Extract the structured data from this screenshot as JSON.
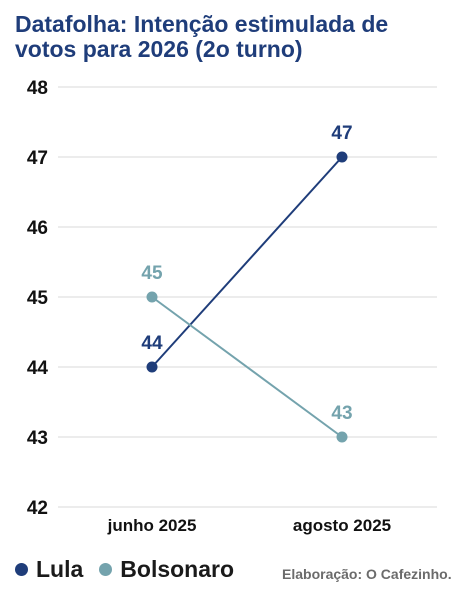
{
  "title": "Datafolha: Intenção estimulada de votos para 2026 (2o turno)",
  "credit": "Elaboração: O Cafezinho.",
  "colors": {
    "Lula": "#1f3d7a",
    "Bolsonaro": "#74a3ad",
    "grid": "#d9d9d9",
    "title": "#1f3d7a"
  },
  "chart_data": {
    "type": "line",
    "title": "Datafolha: Intenção estimulada de votos para 2026 (2o turno)",
    "x": [
      "junho 2025",
      "agosto 2025"
    ],
    "ylim": [
      42,
      48
    ],
    "yticks": [
      42,
      43,
      44,
      45,
      46,
      47,
      48
    ],
    "grid": true,
    "legend_placement": "bottom-left",
    "series": [
      {
        "name": "Lula",
        "values": [
          44,
          47
        ],
        "color": "#1f3d7a"
      },
      {
        "name": "Bolsonaro",
        "values": [
          45,
          43
        ],
        "color": "#74a3ad"
      }
    ]
  }
}
